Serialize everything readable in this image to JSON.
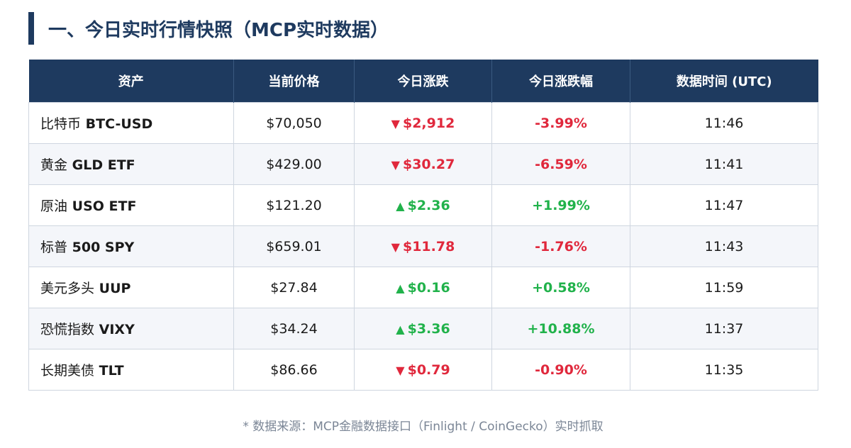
{
  "page": {
    "title": "一、今日实时行情快照（MCP实时数据）",
    "footnote": "* 数据来源：MCP金融数据接口（Finlight / CoinGecko）实时抓取"
  },
  "colors": {
    "header_bg": "#1e3a5f",
    "up": "#21b24b",
    "down": "#e0283c"
  },
  "table": {
    "headers": [
      "资产",
      "当前价格",
      "今日涨跌",
      "今日涨跌幅",
      "数据时间 (UTC)"
    ],
    "rows": [
      {
        "name": "比特币",
        "code": "BTC-USD",
        "price": "$70,050",
        "direction": "down",
        "arrow": "▼",
        "change": "$2,912",
        "pct": "-3.99%",
        "time": "11:46"
      },
      {
        "name": "黄金",
        "code": "GLD ETF",
        "price": "$429.00",
        "direction": "down",
        "arrow": "▼",
        "change": "$30.27",
        "pct": "-6.59%",
        "time": "11:41"
      },
      {
        "name": "原油",
        "code": "USO ETF",
        "price": "$121.20",
        "direction": "up",
        "arrow": "▲",
        "change": "$2.36",
        "pct": "+1.99%",
        "time": "11:47"
      },
      {
        "name": "标普",
        "code": "500 SPY",
        "price": "$659.01",
        "direction": "down",
        "arrow": "▼",
        "change": "$11.78",
        "pct": "-1.76%",
        "time": "11:43"
      },
      {
        "name": "美元多头",
        "code": "UUP",
        "price": "$27.84",
        "direction": "up",
        "arrow": "▲",
        "change": "$0.16",
        "pct": "+0.58%",
        "time": "11:59"
      },
      {
        "name": "恐慌指数",
        "code": "VIXY",
        "price": "$34.24",
        "direction": "up",
        "arrow": "▲",
        "change": "$3.36",
        "pct": "+10.88%",
        "time": "11:37"
      },
      {
        "name": "长期美债",
        "code": "TLT",
        "price": "$86.66",
        "direction": "down",
        "arrow": "▼",
        "change": "$0.79",
        "pct": "-0.90%",
        "time": "11:35"
      }
    ]
  }
}
